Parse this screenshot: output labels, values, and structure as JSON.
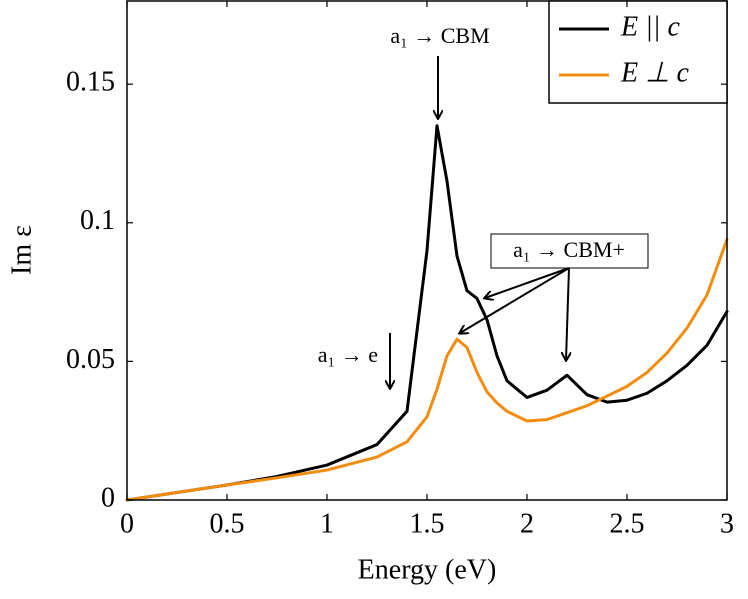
{
  "chart_data": {
    "type": "line",
    "x_label": "Energy (eV)",
    "y_label": "Im ε",
    "x": [
      0,
      0.25,
      0.5,
      0.75,
      1,
      1.25,
      1.4,
      1.5,
      1.55,
      1.6,
      1.65,
      1.7,
      1.75,
      1.8,
      1.85,
      1.9,
      2,
      2.1,
      2.2,
      2.3,
      2.4,
      2.5,
      2.6,
      2.7,
      2.8,
      2.9,
      3
    ],
    "series": [
      {
        "name": "E || c",
        "color": "#000000",
        "values": [
          0,
          0.0027,
          0.0054,
          0.0085,
          0.0126,
          0.02,
          0.032,
          0.09,
          0.135,
          0.115,
          0.088,
          0.0755,
          0.0727,
          0.065,
          0.052,
          0.043,
          0.037,
          0.0396,
          0.045,
          0.038,
          0.0353,
          0.036,
          0.0385,
          0.043,
          0.0486,
          0.0558,
          0.068
        ]
      },
      {
        "name": "E ⊥ c",
        "color": "#f28c0f",
        "values": [
          0,
          0.0027,
          0.0054,
          0.008,
          0.0108,
          0.0155,
          0.021,
          0.03,
          0.04,
          0.052,
          0.058,
          0.055,
          0.046,
          0.039,
          0.035,
          0.032,
          0.0285,
          0.029,
          0.0315,
          0.034,
          0.0375,
          0.041,
          0.046,
          0.053,
          0.062,
          0.074,
          0.094
        ]
      }
    ],
    "xlim": [
      0,
      3
    ],
    "ylim": [
      0,
      0.18
    ],
    "xticks": [
      0,
      0.5,
      1,
      1.5,
      2,
      2.5,
      3
    ],
    "yticks": [
      0,
      0.05,
      0.1,
      0.15
    ],
    "legend": "top-right",
    "annotations": [
      "a₁ → CBM",
      "a₁ → e",
      "a₁ → CBM+"
    ]
  }
}
